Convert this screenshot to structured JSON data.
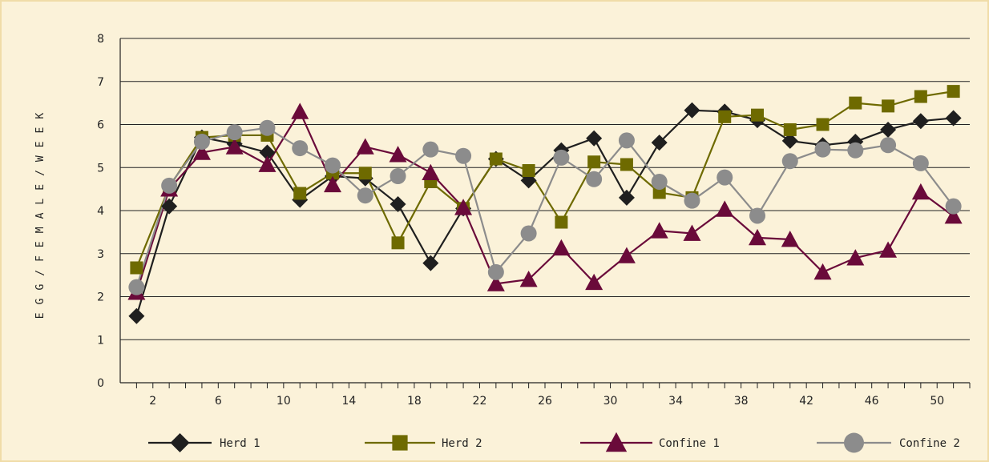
{
  "chart_data": {
    "type": "line",
    "title": "",
    "xlabel": "",
    "ylabel": "EGG/FEMALE/WEEK",
    "ylim": [
      0,
      8
    ],
    "yticks": [
      0,
      1,
      2,
      3,
      4,
      5,
      6,
      7,
      8
    ],
    "xlim": [
      0,
      52
    ],
    "xticks": [
      2,
      6,
      10,
      14,
      18,
      22,
      26,
      30,
      34,
      38,
      42,
      46,
      50
    ],
    "grid": "horizontal",
    "legend": "bottom",
    "x": [
      1,
      3,
      5,
      7,
      9,
      11,
      13,
      15,
      17,
      19,
      21,
      23,
      25,
      27,
      29,
      31,
      33,
      35,
      37,
      39,
      41,
      43,
      45,
      47,
      49,
      51
    ],
    "series": [
      {
        "name": "Herd 1",
        "color": "#1f1f1f",
        "marker": "diamond",
        "values": [
          1.55,
          4.1,
          5.7,
          5.55,
          5.35,
          4.25,
          4.8,
          4.75,
          4.15,
          2.78,
          4.05,
          5.2,
          4.7,
          5.4,
          5.68,
          4.3,
          5.58,
          6.33,
          6.3,
          6.1,
          5.62,
          5.52,
          5.6,
          5.88,
          6.08,
          6.15
        ]
      },
      {
        "name": "Herd 2",
        "color": "#6e6a00",
        "marker": "square",
        "values": [
          2.67,
          4.55,
          5.7,
          5.75,
          5.75,
          4.4,
          4.87,
          4.87,
          3.25,
          4.67,
          4.05,
          5.2,
          4.93,
          3.73,
          5.13,
          5.07,
          4.42,
          4.3,
          6.18,
          6.22,
          5.88,
          6.0,
          6.5,
          6.43,
          6.65,
          6.77
        ]
      },
      {
        "name": "Confine 1",
        "color": "#6a0a3a",
        "marker": "triangle",
        "values": [
          2.1,
          4.5,
          5.35,
          5.48,
          5.07,
          6.3,
          4.6,
          5.48,
          5.3,
          4.88,
          4.07,
          2.3,
          2.4,
          3.13,
          2.33,
          2.95,
          3.53,
          3.47,
          4.03,
          3.37,
          3.33,
          2.57,
          2.9,
          3.08,
          4.43,
          3.87
        ]
      },
      {
        "name": "Confine 2",
        "color": "#8c8c8c",
        "marker": "circle",
        "values": [
          2.22,
          4.58,
          5.6,
          5.82,
          5.92,
          5.45,
          5.05,
          4.35,
          4.8,
          5.42,
          5.27,
          2.57,
          3.47,
          5.23,
          4.73,
          5.63,
          4.67,
          4.23,
          4.77,
          3.88,
          5.15,
          5.42,
          5.4,
          5.52,
          5.1,
          4.1
        ]
      }
    ]
  }
}
